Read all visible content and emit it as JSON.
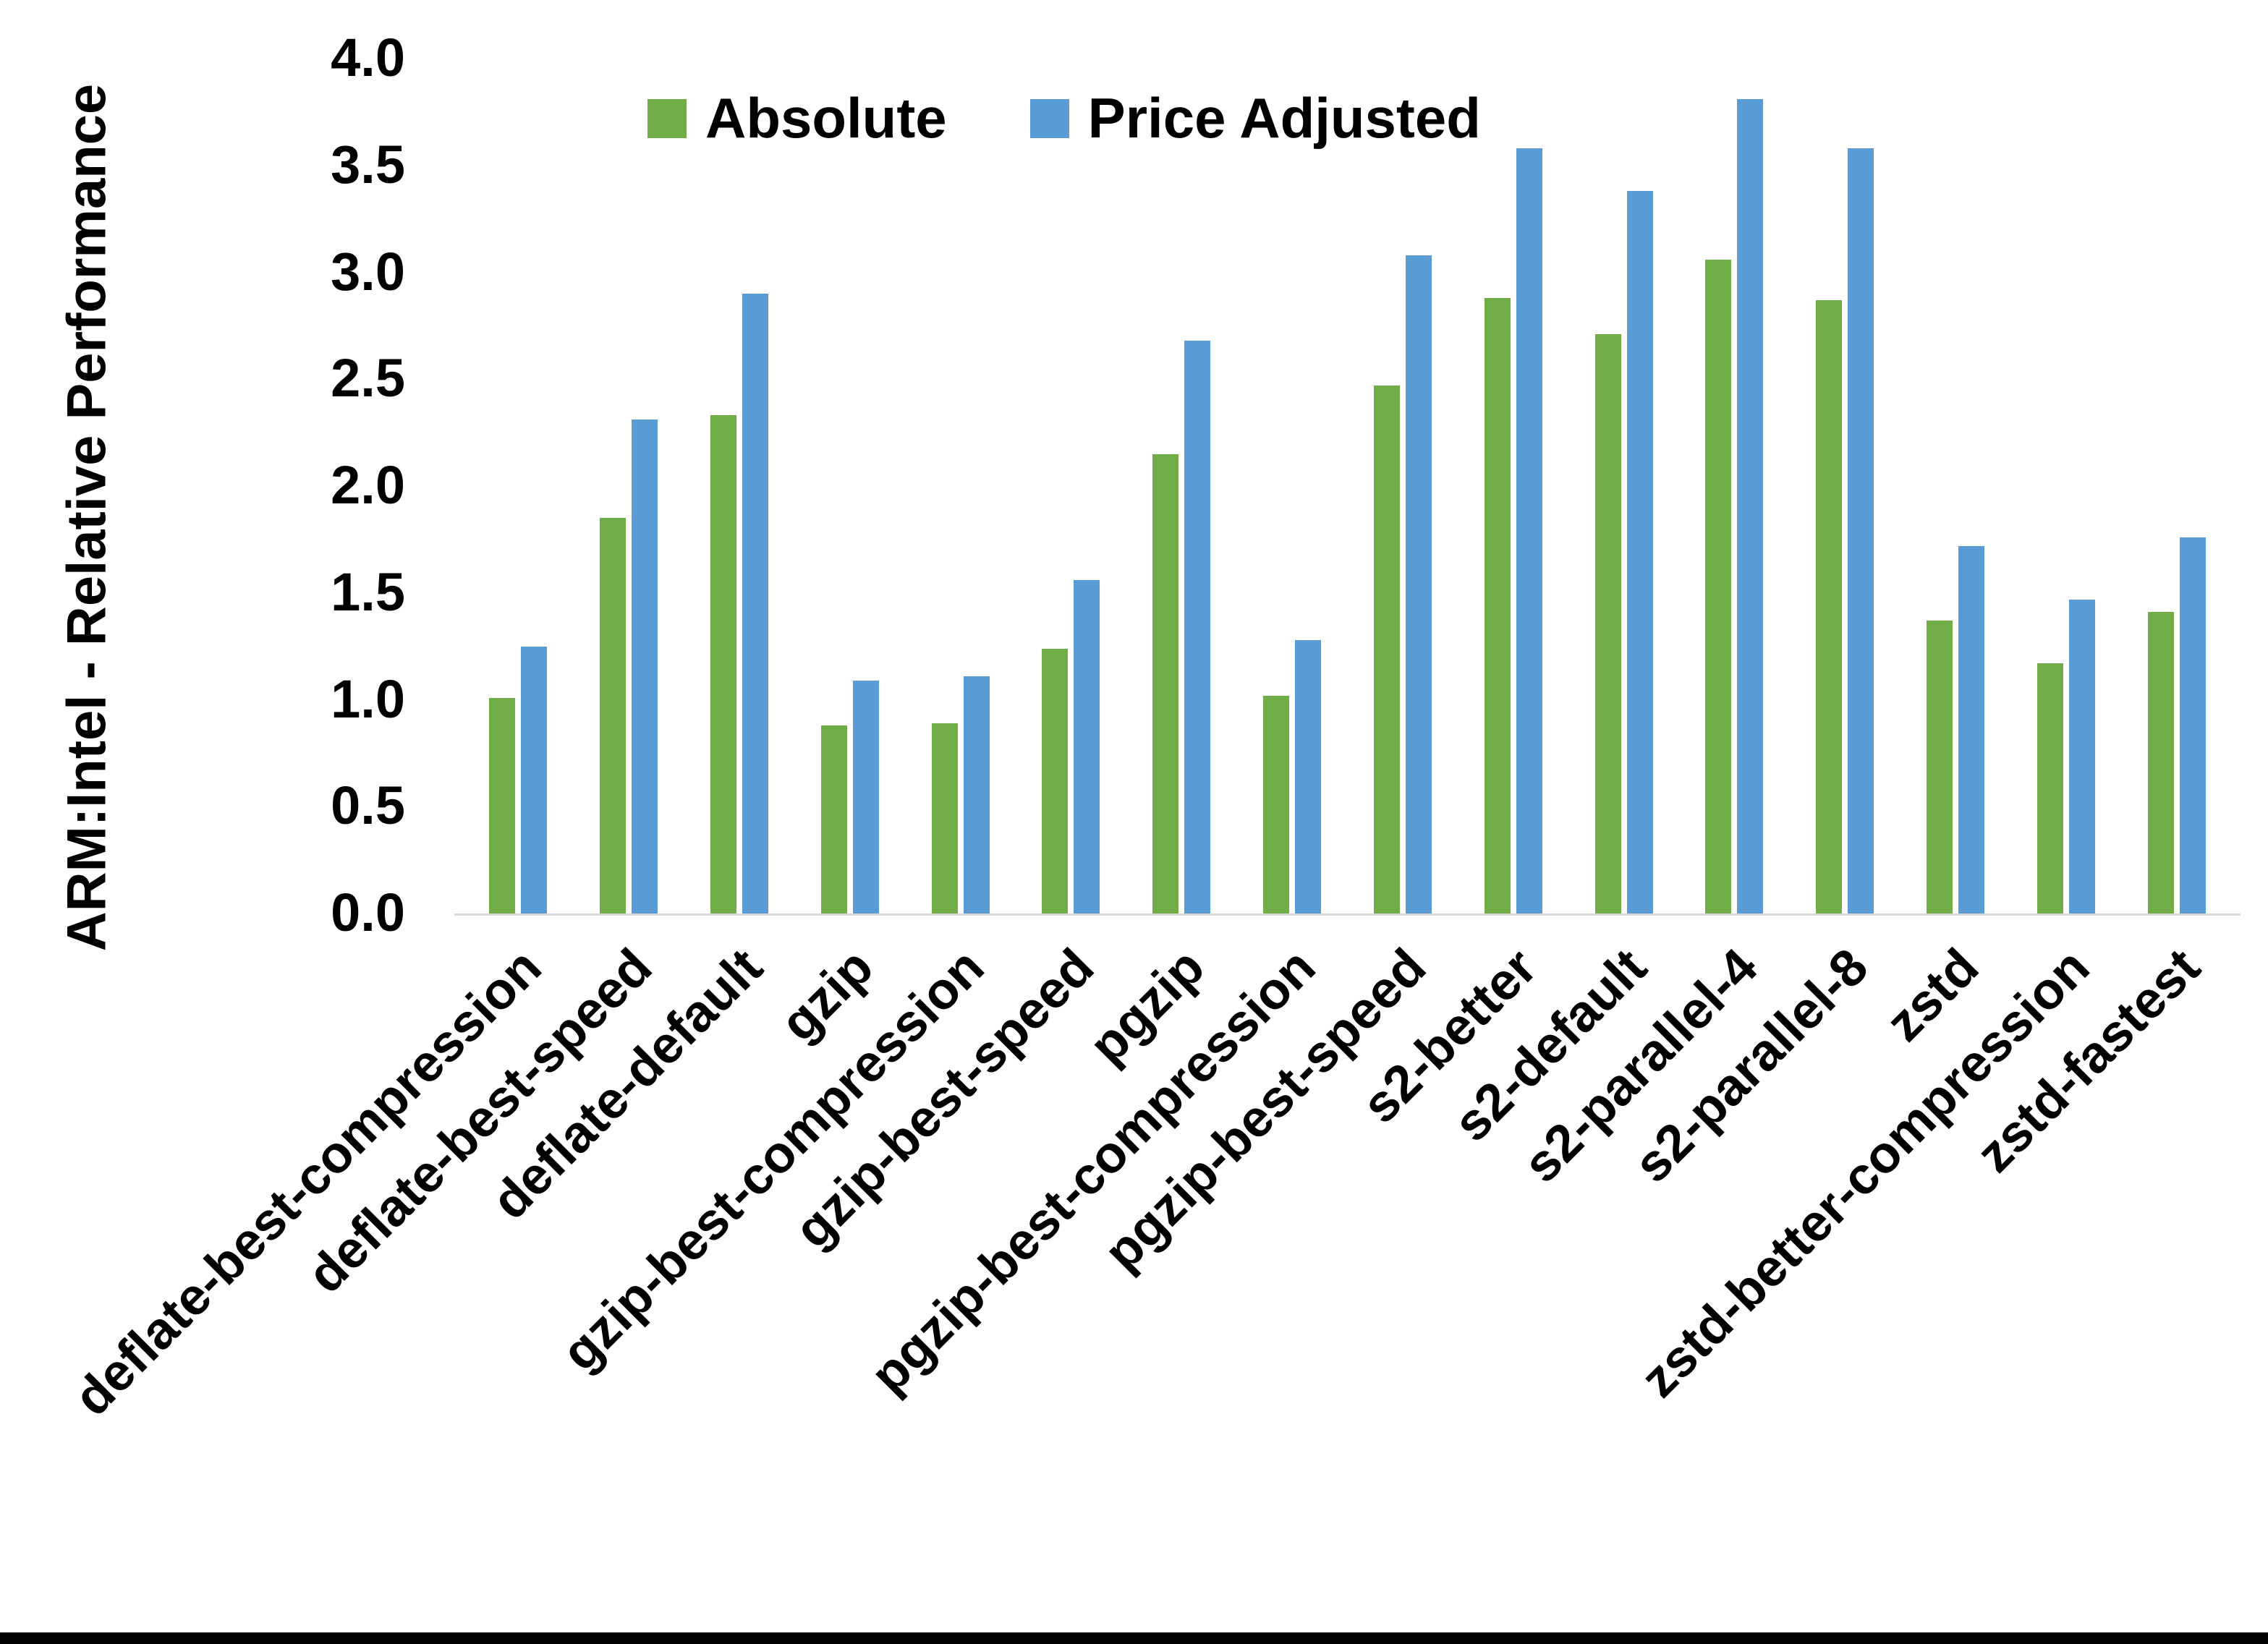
{
  "chart_data": {
    "type": "bar",
    "title": "",
    "xlabel": "",
    "ylabel": "ARM:Intel - Relative Performance",
    "ylim": [
      0.0,
      4.0
    ],
    "ytick_step": 0.5,
    "ytick_labels": [
      "0.0",
      "0.5",
      "1.0",
      "1.5",
      "2.0",
      "2.5",
      "3.0",
      "3.5",
      "4.0"
    ],
    "grid": false,
    "legend_position": "top-center",
    "categories": [
      "deflate-best-compression",
      "deflate-best-speed",
      "deflate-default",
      "gzip",
      "gzip-best-compression",
      "gzip-best-speed",
      "pgzip",
      "pgzip-best-compression",
      "pgzip-best-speed",
      "s2-better",
      "s2-default",
      "s2-parallel-4",
      "s2-parallel-8",
      "zstd",
      "zstd-better-compression",
      "zstd-fastest"
    ],
    "series": [
      {
        "name": "Absolute",
        "color": "#70AD47",
        "values": [
          1.01,
          1.85,
          2.33,
          0.88,
          0.89,
          1.24,
          2.15,
          1.02,
          2.47,
          2.88,
          2.71,
          3.06,
          2.87,
          1.37,
          1.17,
          1.41
        ]
      },
      {
        "name": "Price Adjusted",
        "color": "#5B9BD5",
        "values": [
          1.25,
          2.31,
          2.9,
          1.09,
          1.11,
          1.56,
          2.68,
          1.28,
          3.08,
          3.58,
          3.38,
          3.81,
          3.58,
          1.72,
          1.47,
          1.76
        ]
      }
    ]
  },
  "colors": {
    "absolute": "#70AD47",
    "price_adjusted": "#5B9BD5",
    "axis_line": "#D9D9D9",
    "text": "#000000",
    "bottom_strip": "#000000"
  }
}
